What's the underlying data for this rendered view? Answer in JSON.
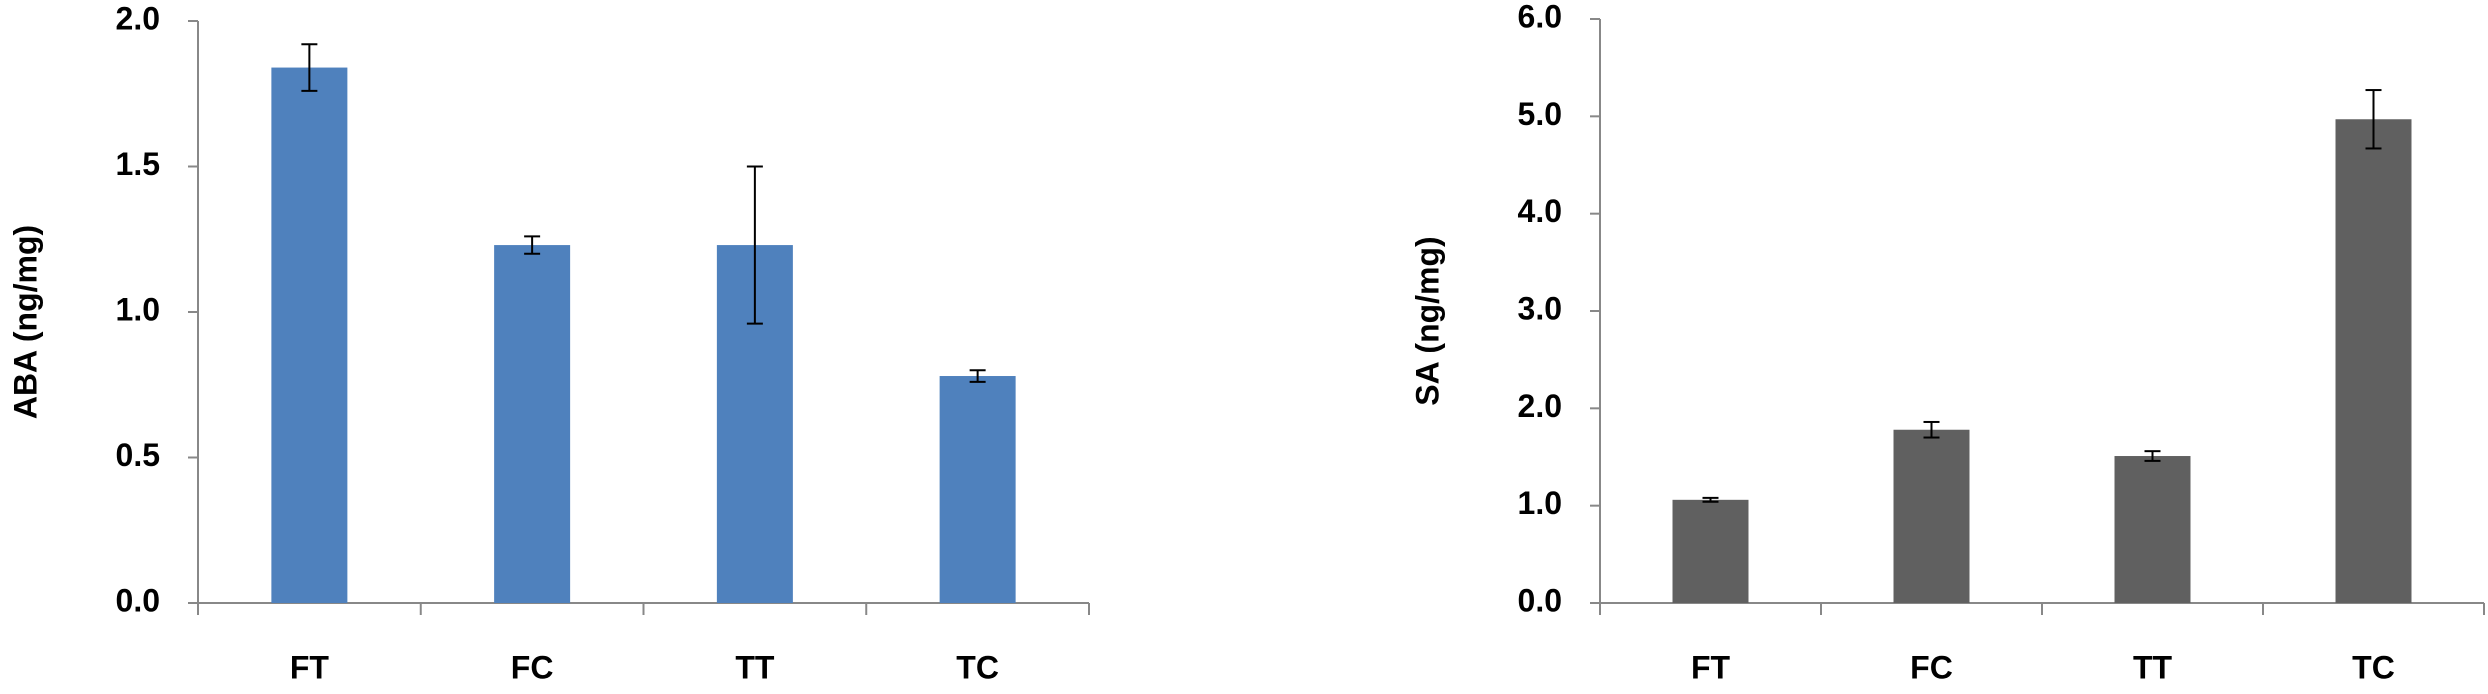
{
  "chart_data": [
    {
      "type": "bar",
      "y_label": "ABA (ng/mg)",
      "categories": [
        "FT",
        "FC",
        "TT",
        "TC"
      ],
      "values": [
        1.84,
        1.23,
        1.23,
        0.78
      ],
      "errors": [
        0.08,
        0.03,
        0.27,
        0.02
      ],
      "color": "#4f81bd",
      "ylim": [
        0,
        2
      ],
      "yticks": [
        {
          "value": 0,
          "label": "0.0"
        },
        0.5,
        {
          "value": 1,
          "label": "1.0"
        },
        1.5,
        {
          "value": 2,
          "label": "2.0"
        }
      ]
    },
    {
      "type": "bar",
      "y_label": "SA (ng/mg)",
      "categories": [
        "FT",
        "FC",
        "TT",
        "TC"
      ],
      "values": [
        1.06,
        1.78,
        1.51,
        4.97
      ],
      "errors": [
        0.02,
        0.08,
        0.05,
        0.3
      ],
      "color": "#606060",
      "ylim": [
        0,
        6
      ],
      "yticks": [
        {
          "value": 0,
          "label": "0.0"
        },
        {
          "value": 1,
          "label": "1.0"
        },
        {
          "value": 2,
          "label": "2.0"
        },
        {
          "value": 3,
          "label": "3.0"
        },
        {
          "value": 4,
          "label": "4.0"
        },
        {
          "value": 5,
          "label": "5.0"
        },
        {
          "value": 6,
          "label": "6.0"
        }
      ]
    }
  ]
}
